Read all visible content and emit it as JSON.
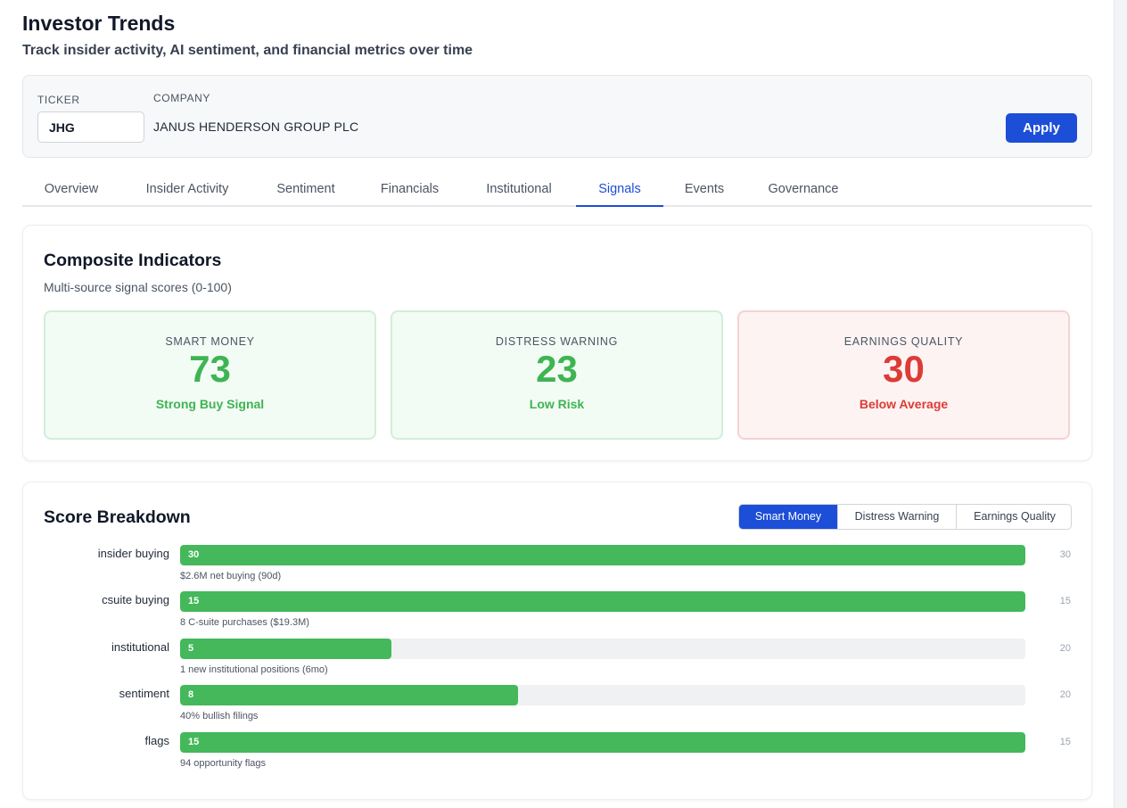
{
  "header": {
    "title": "Investor Trends",
    "subtitle": "Track insider activity, AI sentiment, and financial metrics over time"
  },
  "filters": {
    "ticker_label": "TICKER",
    "ticker_value": "JHG",
    "company_label": "COMPANY",
    "company_name": "JANUS HENDERSON GROUP PLC",
    "apply_label": "Apply"
  },
  "tabs": [
    {
      "label": "Overview"
    },
    {
      "label": "Insider Activity"
    },
    {
      "label": "Sentiment"
    },
    {
      "label": "Financials"
    },
    {
      "label": "Institutional"
    },
    {
      "label": "Signals",
      "active": true
    },
    {
      "label": "Events"
    },
    {
      "label": "Governance"
    }
  ],
  "composite": {
    "title": "Composite Indicators",
    "description": "Multi-source signal scores (0-100)",
    "indicators": [
      {
        "label": "SMART MONEY",
        "value": "73",
        "status": "Strong Buy Signal",
        "color": "#3fb453"
      },
      {
        "label": "DISTRESS WARNING",
        "value": "23",
        "status": "Low Risk",
        "color": "#3fb453"
      },
      {
        "label": "EARNINGS QUALITY",
        "value": "30",
        "status": "Below Average",
        "color": "#dc3c35"
      }
    ]
  },
  "breakdown": {
    "title": "Score Breakdown",
    "modes": [
      {
        "label": "Smart Money",
        "active": true
      },
      {
        "label": "Distress Warning"
      },
      {
        "label": "Earnings Quality"
      }
    ],
    "rows": [
      {
        "label": "insider buying",
        "score": 30,
        "max": 30,
        "note": "$2.6M net buying (90d)"
      },
      {
        "label": "csuite buying",
        "score": 15,
        "max": 15,
        "note": "8 C-suite purchases ($19.3M)"
      },
      {
        "label": "institutional",
        "score": 5,
        "max": 20,
        "note": "1 new institutional positions (6mo)"
      },
      {
        "label": "sentiment",
        "score": 8,
        "max": 20,
        "note": "40% bullish filings"
      },
      {
        "label": "flags",
        "score": 15,
        "max": 15,
        "note": "94 opportunity flags"
      }
    ]
  },
  "colors": {
    "accent": "#1d4ed8",
    "positive": "#3fb453",
    "negative": "#dc3c35",
    "bar": "#44b85a"
  }
}
